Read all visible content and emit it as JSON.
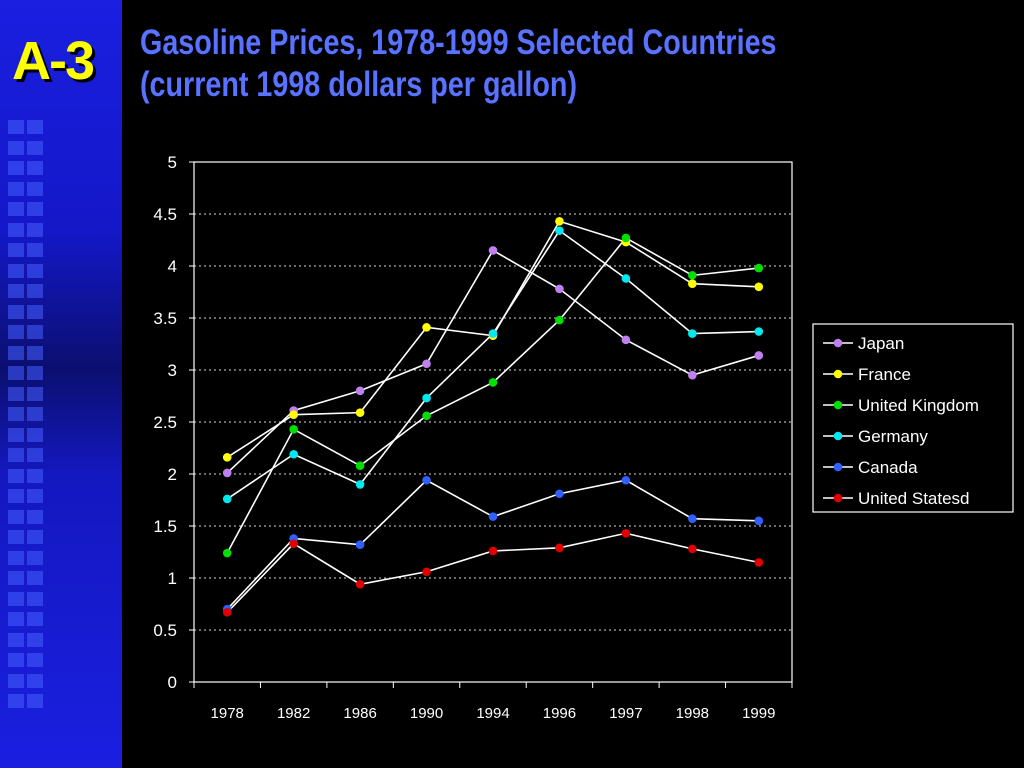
{
  "slide": {
    "label": "A-3",
    "title_line1": "Gasoline Prices, 1978-1999 Selected Countries",
    "title_line2": "(current 1998 dollars per gallon)"
  },
  "chart_data": {
    "type": "line",
    "categories": [
      "1978",
      "1982",
      "1986",
      "1990",
      "1994",
      "1996",
      "1997",
      "1998",
      "1999"
    ],
    "ylim": [
      0,
      5
    ],
    "yticks": [
      0,
      0.5,
      1,
      1.5,
      2,
      2.5,
      3,
      3.5,
      4,
      4.5,
      5
    ],
    "grid": "horizontal-dotted",
    "legend_position": "right",
    "line_color": "#ffffff",
    "series": [
      {
        "name": "Japan",
        "color": "#c080f0",
        "values": [
          2.01,
          2.61,
          2.8,
          3.06,
          4.15,
          3.78,
          3.29,
          2.95,
          3.14
        ]
      },
      {
        "name": "France",
        "color": "#ffff00",
        "values": [
          2.16,
          2.57,
          2.59,
          3.41,
          3.33,
          4.43,
          4.23,
          3.83,
          3.8
        ]
      },
      {
        "name": "United Kingdom",
        "color": "#00e000",
        "values": [
          1.24,
          2.43,
          2.08,
          2.56,
          2.88,
          3.48,
          4.27,
          3.91,
          3.98
        ]
      },
      {
        "name": "Germany",
        "color": "#00e8f0",
        "values": [
          1.76,
          2.19,
          1.9,
          2.73,
          3.35,
          4.34,
          3.88,
          3.35,
          3.37
        ]
      },
      {
        "name": "Canada",
        "color": "#3060ff",
        "values": [
          0.7,
          1.38,
          1.32,
          1.94,
          1.59,
          1.81,
          1.94,
          1.57,
          1.55
        ]
      },
      {
        "name": "United Statesd",
        "color": "#e00000",
        "values": [
          0.67,
          1.33,
          0.94,
          1.06,
          1.26,
          1.29,
          1.43,
          1.28,
          1.15
        ]
      }
    ]
  }
}
